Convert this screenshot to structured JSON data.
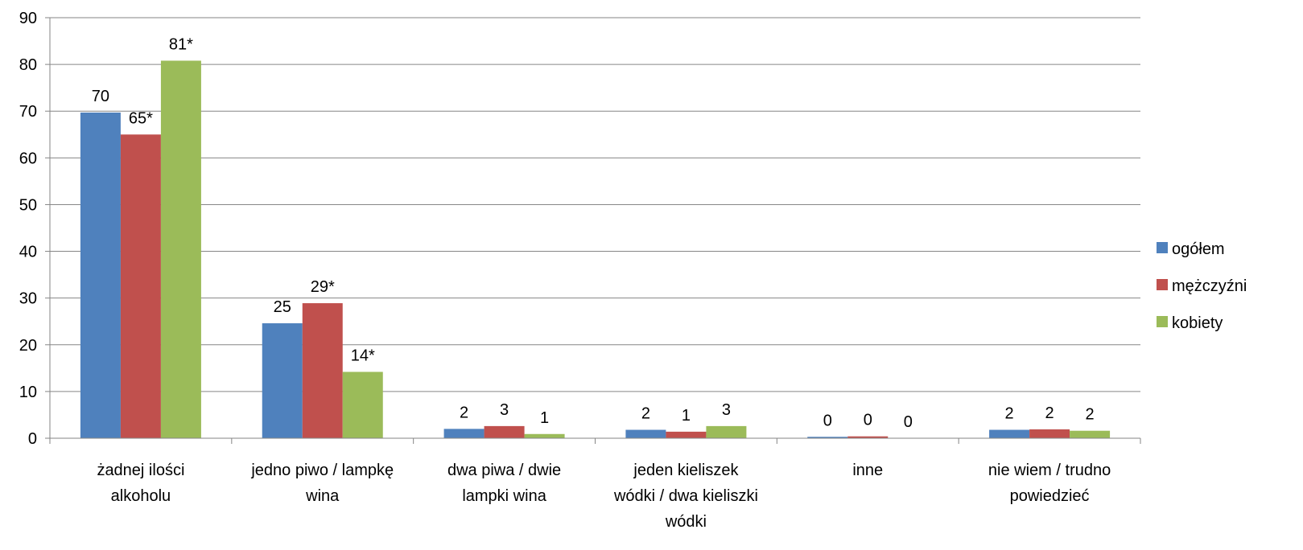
{
  "chart_data": {
    "type": "bar",
    "title": "",
    "xlabel": "",
    "ylabel": "",
    "ylim": [
      0,
      90
    ],
    "yticks": [
      0,
      10,
      20,
      30,
      40,
      50,
      60,
      70,
      80,
      90
    ],
    "grid": true,
    "legend_position": "right",
    "categories": [
      [
        "żadnej ilości",
        "alkoholu"
      ],
      [
        "jedno piwo / lampkę",
        "wina"
      ],
      [
        "dwa piwa / dwie",
        "lampki wina"
      ],
      [
        "jeden kieliszek",
        "wódki / dwa kieliszki",
        "wódki"
      ],
      [
        "inne"
      ],
      [
        "nie wiem / trudno",
        "powiedzieć"
      ]
    ],
    "series": [
      {
        "name": "ogółem",
        "color": "#4F81BD",
        "values": [
          69.7,
          24.6,
          2.0,
          1.8,
          0.3,
          1.8
        ],
        "labels": [
          "70",
          "25",
          "2",
          "2",
          "0",
          "2"
        ]
      },
      {
        "name": "mężczyźni",
        "color": "#C0504D",
        "values": [
          65.0,
          28.9,
          2.6,
          1.4,
          0.4,
          1.9
        ],
        "labels": [
          "65*",
          "29*",
          "3",
          "1",
          "0",
          "2"
        ]
      },
      {
        "name": "kobiety",
        "color": "#9BBB59",
        "values": [
          80.8,
          14.2,
          0.9,
          2.6,
          0.0,
          1.6
        ],
        "labels": [
          "81*",
          "14*",
          "1",
          "3",
          "0",
          "2"
        ]
      }
    ]
  }
}
